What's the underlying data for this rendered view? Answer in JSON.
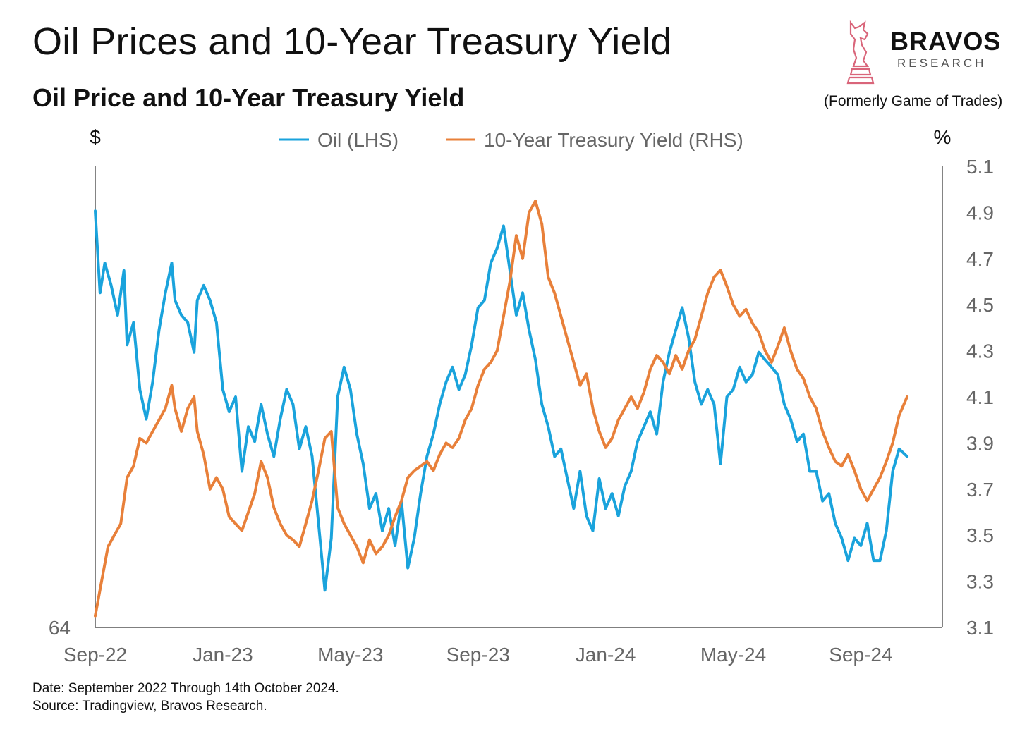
{
  "header": {
    "title": "Oil Prices and 10-Year Treasury Yield",
    "subtitle": "Oil Price and 10-Year Treasury Yield"
  },
  "brand": {
    "name": "BRAVOS",
    "sub": "RESEARCH",
    "formerly": "(Formerly Game of Trades)",
    "icon": "bull-chess-knight-icon"
  },
  "footer": {
    "date_note": "Date: September 2022 Through 14th October 2024.",
    "source_note": "Source: Tradingview, Bravos Research."
  },
  "colors": {
    "oil": "#1AA3DC",
    "yield": "#E8803A",
    "axis": "#333333",
    "tick_text": "#666666",
    "logo": "#D9657A"
  },
  "chart_data": {
    "type": "line",
    "left_axis_unit": "$",
    "right_axis_unit": "%",
    "left_axis_visible_tick": "64",
    "left_ylim": [
      64,
      95
    ],
    "right_ylim": [
      3.1,
      5.1
    ],
    "right_ticks": [
      "5.1",
      "4.9",
      "4.7",
      "4.5",
      "4.3",
      "4.1",
      "3.9",
      "3.7",
      "3.5",
      "3.3",
      "3.1"
    ],
    "x_ticks": [
      "Sep-22",
      "Jan-23",
      "May-23",
      "Sep-23",
      "Jan-24",
      "May-24",
      "Sep-24"
    ],
    "x_tick_months": [
      0,
      4,
      8,
      12,
      16,
      20,
      24
    ],
    "x_range_months": [
      0,
      25.45
    ],
    "legend": [
      "Oil (LHS)",
      "10-Year Treasury Yield (RHS)"
    ],
    "series": [
      {
        "name": "Oil (LHS)",
        "axis": "left",
        "points": [
          [
            0.0,
            92.0
          ],
          [
            0.15,
            86.5
          ],
          [
            0.3,
            88.5
          ],
          [
            0.5,
            87.0
          ],
          [
            0.7,
            85.0
          ],
          [
            0.9,
            88.0
          ],
          [
            1.0,
            83.0
          ],
          [
            1.2,
            84.5
          ],
          [
            1.4,
            80.0
          ],
          [
            1.6,
            78.0
          ],
          [
            1.8,
            80.5
          ],
          [
            2.0,
            84.0
          ],
          [
            2.2,
            86.5
          ],
          [
            2.4,
            88.5
          ],
          [
            2.5,
            86.0
          ],
          [
            2.7,
            85.0
          ],
          [
            2.9,
            84.5
          ],
          [
            3.1,
            82.5
          ],
          [
            3.2,
            86.0
          ],
          [
            3.4,
            87.0
          ],
          [
            3.6,
            86.0
          ],
          [
            3.8,
            84.5
          ],
          [
            4.0,
            80.0
          ],
          [
            4.2,
            78.5
          ],
          [
            4.4,
            79.5
          ],
          [
            4.6,
            74.5
          ],
          [
            4.8,
            77.5
          ],
          [
            5.0,
            76.5
          ],
          [
            5.2,
            79.0
          ],
          [
            5.4,
            77.0
          ],
          [
            5.6,
            75.5
          ],
          [
            5.8,
            78.0
          ],
          [
            6.0,
            80.0
          ],
          [
            6.2,
            79.0
          ],
          [
            6.4,
            76.0
          ],
          [
            6.6,
            77.5
          ],
          [
            6.8,
            75.5
          ],
          [
            7.0,
            71.0
          ],
          [
            7.2,
            66.5
          ],
          [
            7.4,
            70.0
          ],
          [
            7.6,
            79.5
          ],
          [
            7.8,
            81.5
          ],
          [
            8.0,
            80.0
          ],
          [
            8.2,
            77.0
          ],
          [
            8.4,
            75.0
          ],
          [
            8.6,
            72.0
          ],
          [
            8.8,
            73.0
          ],
          [
            9.0,
            70.5
          ],
          [
            9.2,
            72.0
          ],
          [
            9.4,
            69.5
          ],
          [
            9.6,
            72.5
          ],
          [
            9.8,
            68.0
          ],
          [
            10.0,
            70.0
          ],
          [
            10.2,
            73.0
          ],
          [
            10.4,
            75.5
          ],
          [
            10.6,
            77.0
          ],
          [
            10.8,
            79.0
          ],
          [
            11.0,
            80.5
          ],
          [
            11.2,
            81.5
          ],
          [
            11.4,
            80.0
          ],
          [
            11.6,
            81.0
          ],
          [
            11.8,
            83.0
          ],
          [
            12.0,
            85.5
          ],
          [
            12.2,
            86.0
          ],
          [
            12.4,
            88.5
          ],
          [
            12.6,
            89.5
          ],
          [
            12.8,
            91.0
          ],
          [
            13.0,
            88.0
          ],
          [
            13.2,
            85.0
          ],
          [
            13.4,
            86.5
          ],
          [
            13.6,
            84.0
          ],
          [
            13.8,
            82.0
          ],
          [
            14.0,
            79.0
          ],
          [
            14.2,
            77.5
          ],
          [
            14.4,
            75.5
          ],
          [
            14.6,
            76.0
          ],
          [
            14.8,
            74.0
          ],
          [
            15.0,
            72.0
          ],
          [
            15.2,
            74.5
          ],
          [
            15.4,
            71.5
          ],
          [
            15.6,
            70.5
          ],
          [
            15.8,
            74.0
          ],
          [
            16.0,
            72.0
          ],
          [
            16.2,
            73.0
          ],
          [
            16.4,
            71.5
          ],
          [
            16.6,
            73.5
          ],
          [
            16.8,
            74.5
          ],
          [
            17.0,
            76.5
          ],
          [
            17.2,
            77.5
          ],
          [
            17.4,
            78.5
          ],
          [
            17.6,
            77.0
          ],
          [
            17.8,
            80.5
          ],
          [
            18.0,
            82.5
          ],
          [
            18.2,
            84.0
          ],
          [
            18.4,
            85.5
          ],
          [
            18.6,
            83.5
          ],
          [
            18.8,
            80.5
          ],
          [
            19.0,
            79.0
          ],
          [
            19.2,
            80.0
          ],
          [
            19.4,
            79.0
          ],
          [
            19.6,
            75.0
          ],
          [
            19.8,
            79.5
          ],
          [
            20.0,
            80.0
          ],
          [
            20.2,
            81.5
          ],
          [
            20.4,
            80.5
          ],
          [
            20.6,
            81.0
          ],
          [
            20.8,
            82.5
          ],
          [
            21.0,
            82.0
          ],
          [
            21.2,
            81.5
          ],
          [
            21.4,
            81.0
          ],
          [
            21.6,
            79.0
          ],
          [
            21.8,
            78.0
          ],
          [
            22.0,
            76.5
          ],
          [
            22.2,
            77.0
          ],
          [
            22.4,
            74.5
          ],
          [
            22.6,
            74.5
          ],
          [
            22.8,
            72.5
          ],
          [
            23.0,
            73.0
          ],
          [
            23.2,
            71.0
          ],
          [
            23.4,
            70.0
          ],
          [
            23.6,
            68.5
          ],
          [
            23.8,
            70.0
          ],
          [
            24.0,
            69.5
          ],
          [
            24.2,
            71.0
          ],
          [
            24.4,
            68.5
          ],
          [
            24.6,
            68.5
          ],
          [
            24.8,
            70.5
          ],
          [
            25.0,
            74.5
          ],
          [
            25.2,
            76.0
          ],
          [
            25.45,
            75.5
          ]
        ]
      },
      {
        "name": "10-Year Treasury Yield (RHS)",
        "axis": "right",
        "points": [
          [
            0.0,
            3.15
          ],
          [
            0.2,
            3.3
          ],
          [
            0.4,
            3.45
          ],
          [
            0.6,
            3.5
          ],
          [
            0.8,
            3.55
          ],
          [
            1.0,
            3.75
          ],
          [
            1.2,
            3.8
          ],
          [
            1.4,
            3.92
          ],
          [
            1.6,
            3.9
          ],
          [
            1.8,
            3.95
          ],
          [
            2.0,
            4.0
          ],
          [
            2.2,
            4.05
          ],
          [
            2.4,
            4.15
          ],
          [
            2.5,
            4.05
          ],
          [
            2.7,
            3.95
          ],
          [
            2.9,
            4.05
          ],
          [
            3.1,
            4.1
          ],
          [
            3.2,
            3.95
          ],
          [
            3.4,
            3.85
          ],
          [
            3.6,
            3.7
          ],
          [
            3.8,
            3.75
          ],
          [
            4.0,
            3.7
          ],
          [
            4.2,
            3.58
          ],
          [
            4.4,
            3.55
          ],
          [
            4.6,
            3.52
          ],
          [
            4.8,
            3.6
          ],
          [
            5.0,
            3.68
          ],
          [
            5.2,
            3.82
          ],
          [
            5.4,
            3.75
          ],
          [
            5.6,
            3.62
          ],
          [
            5.8,
            3.55
          ],
          [
            6.0,
            3.5
          ],
          [
            6.2,
            3.48
          ],
          [
            6.4,
            3.45
          ],
          [
            6.6,
            3.55
          ],
          [
            6.8,
            3.65
          ],
          [
            7.0,
            3.78
          ],
          [
            7.2,
            3.92
          ],
          [
            7.4,
            3.95
          ],
          [
            7.6,
            3.62
          ],
          [
            7.8,
            3.55
          ],
          [
            8.0,
            3.5
          ],
          [
            8.2,
            3.45
          ],
          [
            8.4,
            3.38
          ],
          [
            8.6,
            3.48
          ],
          [
            8.8,
            3.42
          ],
          [
            9.0,
            3.45
          ],
          [
            9.2,
            3.5
          ],
          [
            9.4,
            3.58
          ],
          [
            9.6,
            3.65
          ],
          [
            9.8,
            3.75
          ],
          [
            10.0,
            3.78
          ],
          [
            10.2,
            3.8
          ],
          [
            10.4,
            3.82
          ],
          [
            10.6,
            3.78
          ],
          [
            10.8,
            3.85
          ],
          [
            11.0,
            3.9
          ],
          [
            11.2,
            3.88
          ],
          [
            11.4,
            3.92
          ],
          [
            11.6,
            4.0
          ],
          [
            11.8,
            4.05
          ],
          [
            12.0,
            4.15
          ],
          [
            12.2,
            4.22
          ],
          [
            12.4,
            4.25
          ],
          [
            12.6,
            4.3
          ],
          [
            12.8,
            4.45
          ],
          [
            13.0,
            4.6
          ],
          [
            13.2,
            4.8
          ],
          [
            13.4,
            4.7
          ],
          [
            13.6,
            4.9
          ],
          [
            13.8,
            4.95
          ],
          [
            14.0,
            4.85
          ],
          [
            14.2,
            4.62
          ],
          [
            14.4,
            4.55
          ],
          [
            14.6,
            4.45
          ],
          [
            14.8,
            4.35
          ],
          [
            15.0,
            4.25
          ],
          [
            15.2,
            4.15
          ],
          [
            15.4,
            4.2
          ],
          [
            15.6,
            4.05
          ],
          [
            15.8,
            3.95
          ],
          [
            16.0,
            3.88
          ],
          [
            16.2,
            3.92
          ],
          [
            16.4,
            4.0
          ],
          [
            16.6,
            4.05
          ],
          [
            16.8,
            4.1
          ],
          [
            17.0,
            4.05
          ],
          [
            17.2,
            4.12
          ],
          [
            17.4,
            4.22
          ],
          [
            17.6,
            4.28
          ],
          [
            17.8,
            4.25
          ],
          [
            18.0,
            4.2
          ],
          [
            18.2,
            4.28
          ],
          [
            18.4,
            4.22
          ],
          [
            18.6,
            4.3
          ],
          [
            18.8,
            4.35
          ],
          [
            19.0,
            4.45
          ],
          [
            19.2,
            4.55
          ],
          [
            19.4,
            4.62
          ],
          [
            19.6,
            4.65
          ],
          [
            19.8,
            4.58
          ],
          [
            20.0,
            4.5
          ],
          [
            20.2,
            4.45
          ],
          [
            20.4,
            4.48
          ],
          [
            20.6,
            4.42
          ],
          [
            20.8,
            4.38
          ],
          [
            21.0,
            4.3
          ],
          [
            21.2,
            4.25
          ],
          [
            21.4,
            4.32
          ],
          [
            21.6,
            4.4
          ],
          [
            21.8,
            4.3
          ],
          [
            22.0,
            4.22
          ],
          [
            22.2,
            4.18
          ],
          [
            22.4,
            4.1
          ],
          [
            22.6,
            4.05
          ],
          [
            22.8,
            3.95
          ],
          [
            23.0,
            3.88
          ],
          [
            23.2,
            3.82
          ],
          [
            23.4,
            3.8
          ],
          [
            23.6,
            3.85
          ],
          [
            23.8,
            3.78
          ],
          [
            24.0,
            3.7
          ],
          [
            24.2,
            3.65
          ],
          [
            24.4,
            3.7
          ],
          [
            24.6,
            3.75
          ],
          [
            24.8,
            3.82
          ],
          [
            25.0,
            3.9
          ],
          [
            25.2,
            4.02
          ],
          [
            25.45,
            4.1
          ]
        ]
      }
    ]
  }
}
